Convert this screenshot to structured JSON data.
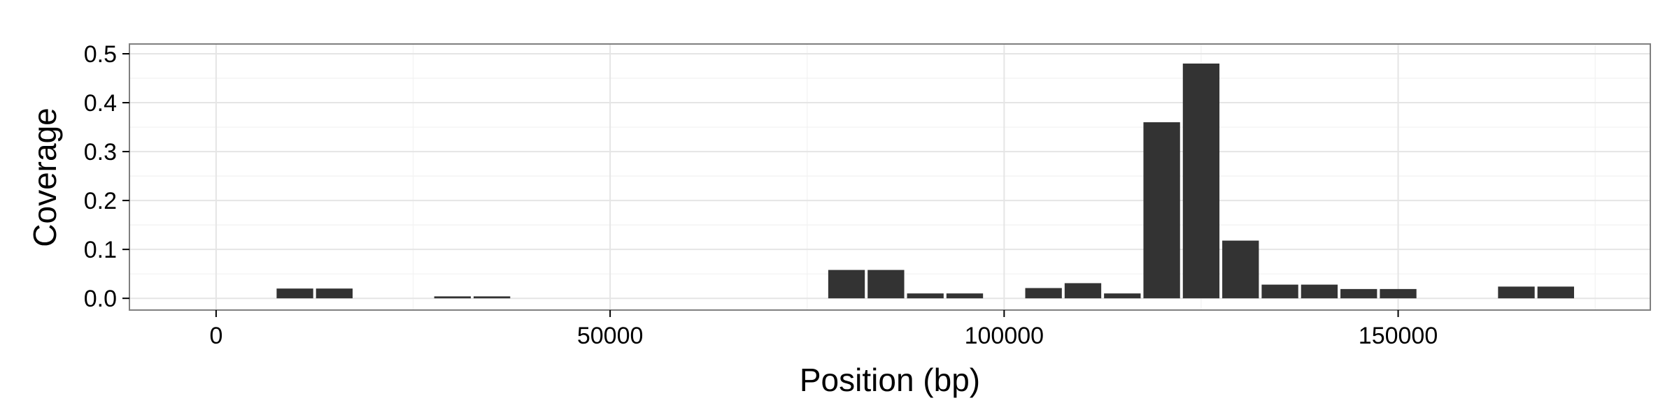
{
  "chart_data": {
    "type": "bar",
    "title": "",
    "xlabel": "Position (bp)",
    "ylabel": "Coverage",
    "xlim": [
      -11000,
      182000
    ],
    "ylim": [
      -0.024,
      0.52
    ],
    "x_ticks": [
      0,
      50000,
      100000,
      150000
    ],
    "x_tick_labels": [
      "0",
      "50000",
      "100000",
      "150000"
    ],
    "y_ticks": [
      0.0,
      0.1,
      0.2,
      0.3,
      0.4,
      0.5
    ],
    "y_tick_labels": [
      "0.0",
      "0.1",
      "0.2",
      "0.3",
      "0.4",
      "0.5"
    ],
    "bar_width": 5000,
    "grid": true,
    "legend": "none",
    "bar_color": "#333333",
    "x": [
      10000,
      15000,
      30000,
      35000,
      80000,
      85000,
      90000,
      95000,
      105000,
      110000,
      115000,
      120000,
      125000,
      130000,
      135000,
      140000,
      145000,
      150000,
      165000,
      170000
    ],
    "values": [
      0.02,
      0.02,
      0.004,
      0.004,
      0.058,
      0.058,
      0.01,
      0.01,
      0.021,
      0.031,
      0.01,
      0.36,
      0.48,
      0.118,
      0.028,
      0.028,
      0.019,
      0.019,
      0.024,
      0.024
    ]
  }
}
